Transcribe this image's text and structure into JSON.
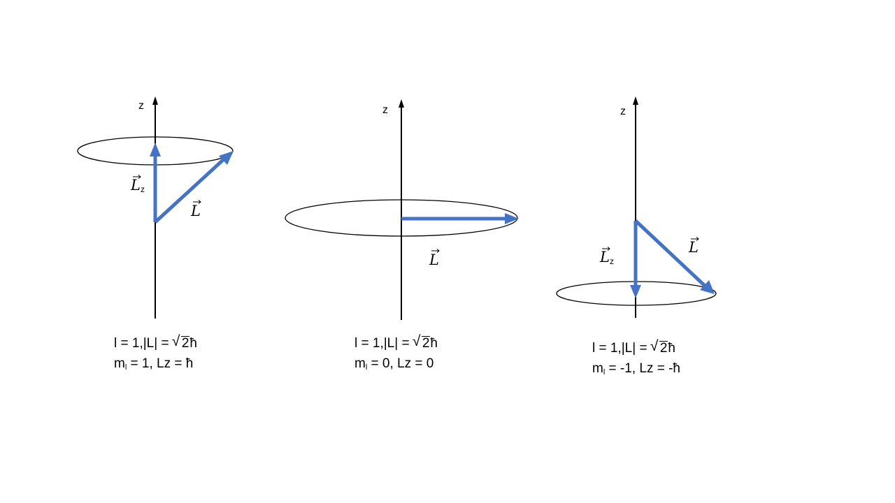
{
  "colors": {
    "vector": "#4472C4",
    "axis": "#000000",
    "background": "#ffffff"
  },
  "panels": [
    {
      "axis_label": "z",
      "vec_symbol": "L",
      "vec_sub": "z",
      "caption_line1_a": "l = 1,",
      "caption_line1_b": "|L| = ",
      "sqrt_arg": "2",
      "hbar": "ħ",
      "caption_line2_m": "m",
      "caption_line2_sub": "l",
      "caption_line2_rest": " = 1, Lz = ħ"
    },
    {
      "axis_label": "z",
      "vec_symbol": "L",
      "caption_line1_a": "l = 1,",
      "caption_line1_b": "|L| = ",
      "sqrt_arg": "2",
      "hbar": "ħ",
      "caption_line2_m": "m",
      "caption_line2_sub": "l",
      "caption_line2_rest": " = 0, Lz = 0"
    },
    {
      "axis_label": "z",
      "vec_symbol": "L",
      "vec_sub": "z",
      "caption_line1_a": "l = 1,",
      "caption_line1_b": "|L| = ",
      "sqrt_arg": "2",
      "hbar": "ħ",
      "caption_line2_m": "m",
      "caption_line2_sub": "l",
      "caption_line2_rest": " = -1, Lz = -ħ"
    }
  ]
}
